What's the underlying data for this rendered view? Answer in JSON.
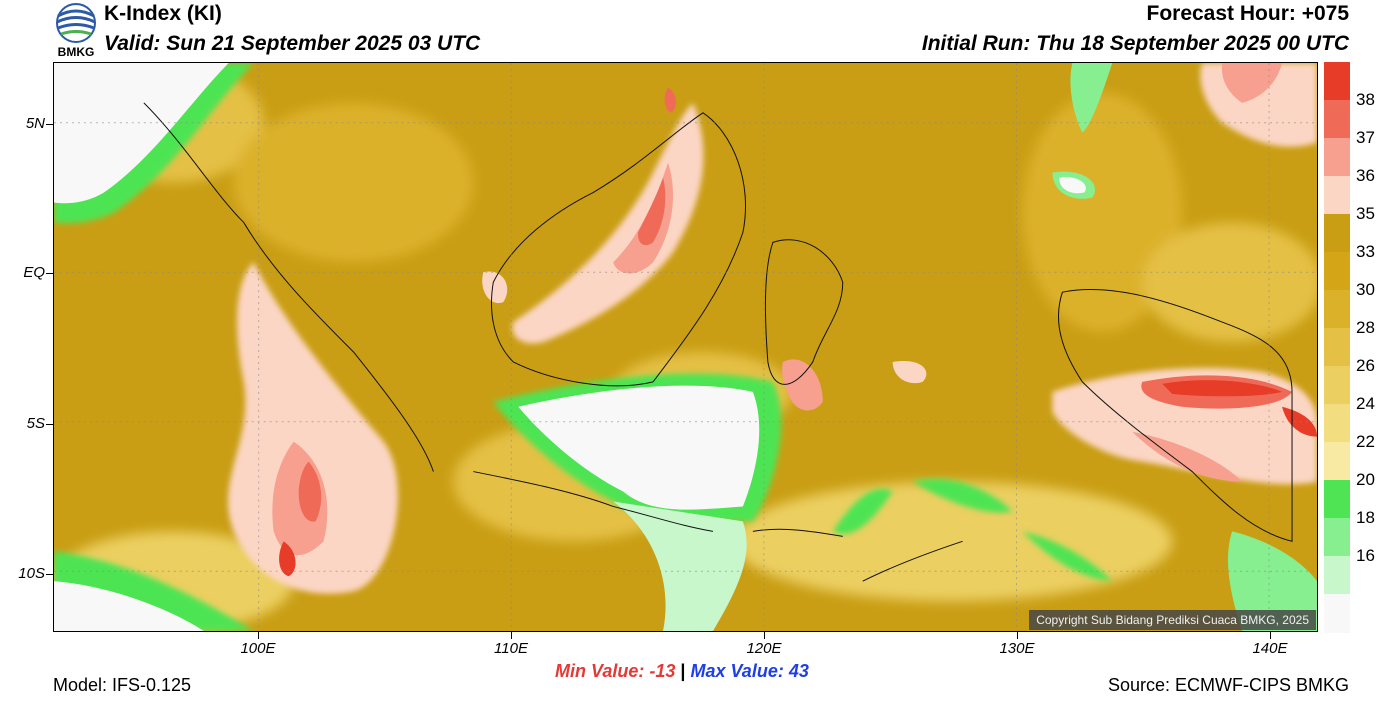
{
  "header": {
    "title": "K-Index (KI)",
    "valid": "Valid: Sun 21 September 2025 03 UTC",
    "forecast_hour": "Forecast Hour: +075",
    "initial_run": "Initial Run: Thu 18 September 2025 00 UTC",
    "logo_text": "BMKG"
  },
  "map": {
    "lon_labels": [
      "100E",
      "110E",
      "120E",
      "130E",
      "140E"
    ],
    "lat_labels": [
      "5N",
      "EQ",
      "5S",
      "10S"
    ],
    "copyright": "Copyright Sub Bidang Prediksi Cuaca BMKG, 2025",
    "dominant_color": "#c99e14"
  },
  "colorbar": {
    "labels": [
      "38",
      "37",
      "36",
      "35",
      "33",
      "30",
      "28",
      "26",
      "24",
      "22",
      "20",
      "18",
      "16"
    ],
    "colors": [
      "#e63c28",
      "#f06a58",
      "#f7a090",
      "#fcd6c4",
      "#c99e14",
      "#d4a617",
      "#dcb12a",
      "#e4c045",
      "#ebcf60",
      "#f2dd80",
      "#f8eaa2",
      "#4ee453",
      "#88ef90",
      "#c8f7cc",
      "#f8f8f8"
    ]
  },
  "footer": {
    "min_label": "Min Value:",
    "min_value": "-13",
    "separator": "|",
    "max_label": "Max Value:",
    "max_value": "43",
    "model": "Model: IFS-0.125",
    "source": "Source: ECMWF-CIPS BMKG",
    "min_color": "#e53935",
    "max_color": "#1e3ee6"
  }
}
